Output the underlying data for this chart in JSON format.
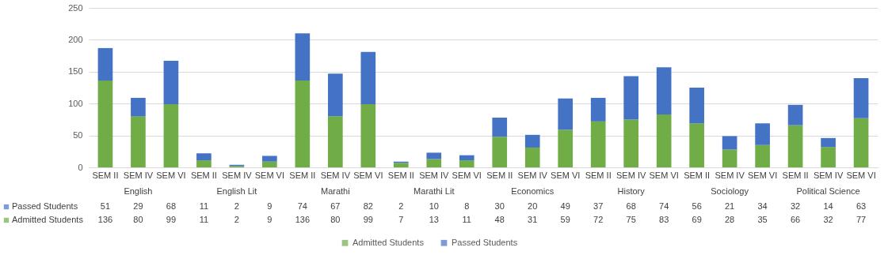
{
  "chart_data": {
    "type": "bar",
    "stacked": true,
    "categories": [
      "SEM II",
      "SEM IV",
      "SEM VI",
      "SEM II",
      "SEM IV",
      "SEM VI",
      "SEM II",
      "SEM IV",
      "SEM VI",
      "SEM II",
      "SEM IV",
      "SEM VI",
      "SEM II",
      "SEM IV",
      "SEM VI",
      "SEM II",
      "SEM IV",
      "SEM VI",
      "SEM II",
      "SEM IV",
      "SEM VI",
      "SEM II",
      "SEM IV",
      "SEM VI"
    ],
    "series": [
      {
        "name": "Admitted Students",
        "color": "#70ad47",
        "values": [
          136,
          80,
          99,
          11,
          2,
          9,
          136,
          80,
          99,
          7,
          13,
          11,
          48,
          31,
          59,
          72,
          75,
          83,
          69,
          28,
          35,
          66,
          32,
          77
        ]
      },
      {
        "name": "Passed Students",
        "color": "#4472c4",
        "values": [
          51,
          29,
          68,
          11,
          2,
          9,
          74,
          67,
          82,
          2,
          10,
          8,
          30,
          20,
          49,
          37,
          68,
          74,
          56,
          21,
          34,
          32,
          14,
          63
        ]
      }
    ],
    "annotations": [
      "English",
      "English Lit",
      "Marathi",
      "Marathi Lit",
      "Economics",
      "History",
      "Sociology",
      "Political Science"
    ],
    "ylim": [
      0,
      250
    ],
    "yticks": [
      0,
      50,
      100,
      150,
      200,
      250
    ],
    "grid": "y",
    "legend": "bottom",
    "data_labels": true
  }
}
